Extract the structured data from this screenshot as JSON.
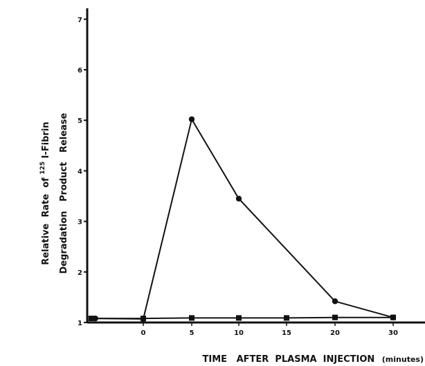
{
  "chart_data": {
    "type": "line",
    "title": "",
    "xlabel_main": "TIME   AFTER  PLASMA  INJECTION",
    "xlabel_unit": "(minutes)",
    "ylabel_line1_prefix": "Relative  Rate  of",
    "ylabel_line1_super": "125",
    "ylabel_line1_suffix": "I-Fibrin",
    "ylabel_line2": "Degradation   Product   Release",
    "x_ticks": [
      {
        "value": 0,
        "label": "0"
      },
      {
        "value": 5,
        "label": "5"
      },
      {
        "value": 10,
        "label": "10"
      },
      {
        "value": 15,
        "label": "15"
      },
      {
        "value": 20,
        "label": "20"
      },
      {
        "value": 30,
        "label": "30"
      }
    ],
    "y_ticks": [
      {
        "value": 1,
        "label": "1"
      },
      {
        "value": 2,
        "label": "2"
      },
      {
        "value": 3,
        "label": "3"
      },
      {
        "value": 4,
        "label": "4"
      },
      {
        "value": 5,
        "label": "5"
      },
      {
        "value": 6,
        "label": "6"
      },
      {
        "value": 7,
        "label": "7"
      }
    ],
    "ylim": [
      1,
      7.3
    ],
    "series": [
      {
        "marker": "circle",
        "points": [
          {
            "x": -3.5,
            "y": 1.08
          },
          {
            "x": 0,
            "y": 1.07
          },
          {
            "x": 5,
            "y": 5.02
          },
          {
            "x": 10,
            "y": 3.45
          },
          {
            "x": 20,
            "y": 1.42
          },
          {
            "x": 30,
            "y": 1.1
          }
        ]
      },
      {
        "marker": "square",
        "points": [
          {
            "x": -3.8,
            "y": 1.08
          },
          {
            "x": 0,
            "y": 1.08
          },
          {
            "x": 5,
            "y": 1.09
          },
          {
            "x": 10,
            "y": 1.09
          },
          {
            "x": 15,
            "y": 1.09
          },
          {
            "x": 20,
            "y": 1.1
          },
          {
            "x": 30,
            "y": 1.1
          }
        ]
      }
    ]
  }
}
